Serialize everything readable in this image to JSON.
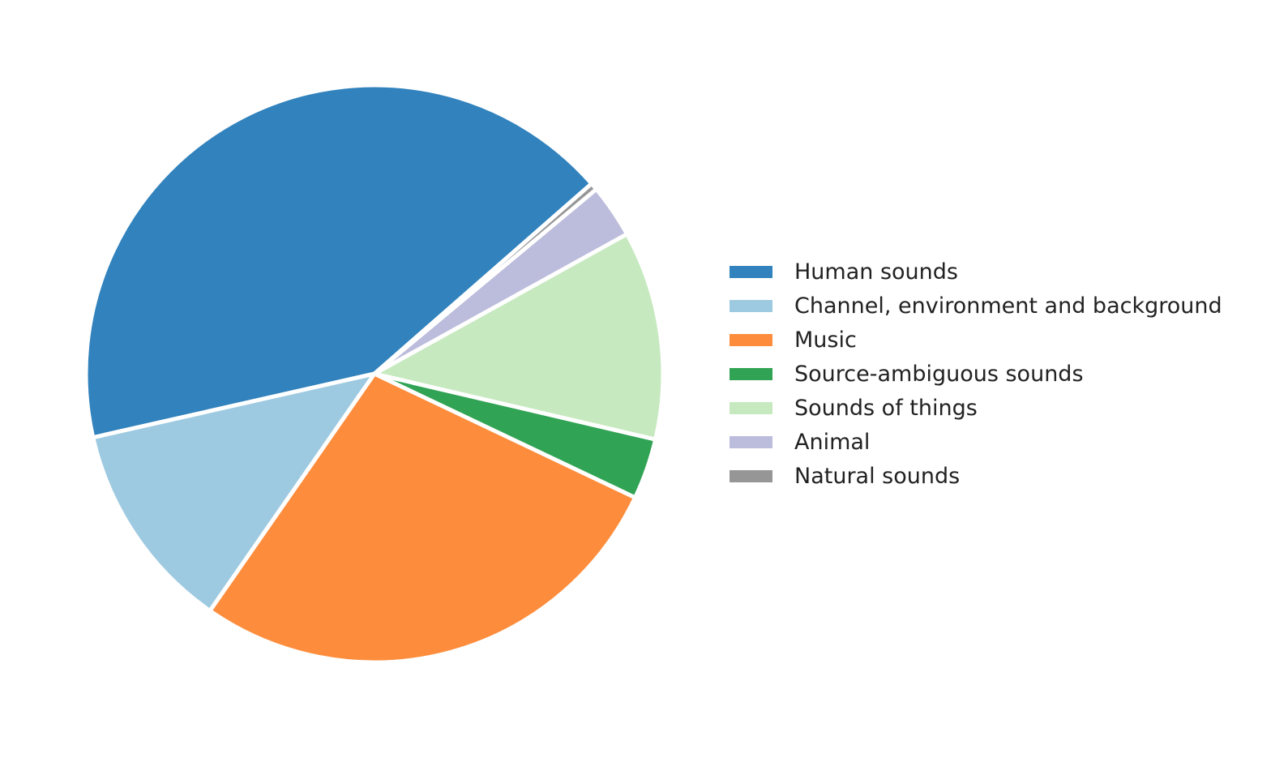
{
  "chart_data": {
    "type": "pie",
    "title": "",
    "start_angle_deg": 41.2,
    "direction": "counterclockwise",
    "wedge_edge_color": "#ffffff",
    "series": [
      {
        "name": "Human sounds",
        "value": 42.1,
        "color": "#3182bd"
      },
      {
        "name": "Channel, environment and background",
        "value": 11.8,
        "color": "#9ecae1"
      },
      {
        "name": "Music",
        "value": 27.6,
        "color": "#fd8d3c"
      },
      {
        "name": "Source-ambiguous sounds",
        "value": 3.4,
        "color": "#31a354"
      },
      {
        "name": "Sounds of things",
        "value": 11.7,
        "color": "#c7e9c0"
      },
      {
        "name": "Animal",
        "value": 3.0,
        "color": "#bcbddc"
      },
      {
        "name": "Natural sounds",
        "value": 0.4,
        "color": "#969696"
      }
    ],
    "legend": {
      "placement": "right"
    }
  }
}
